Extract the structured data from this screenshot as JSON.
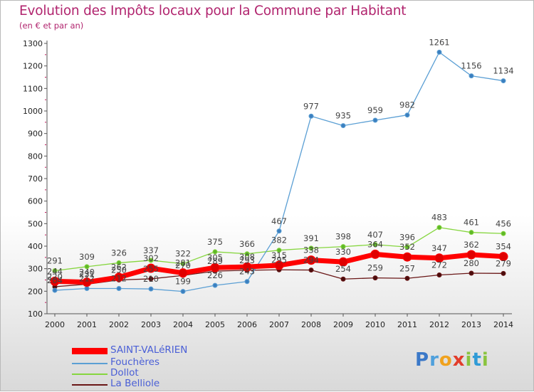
{
  "title": "Evolution des Impôts locaux pour la Commune par Habitant",
  "subtitle": "(en € et par an)",
  "logo": {
    "text": "Proxiti",
    "letters": [
      {
        "ch": "P",
        "color": "#3b78c8"
      },
      {
        "ch": "r",
        "color": "#4fa0dc"
      },
      {
        "ch": "o",
        "color": "#f0a21e"
      },
      {
        "ch": "x",
        "color": "#e23d2b"
      },
      {
        "ch": "i",
        "color": "#8ac43f"
      },
      {
        "ch": "t",
        "color": "#2f9bd6"
      },
      {
        "ch": "i",
        "color": "#8ac43f"
      }
    ]
  },
  "chart_data": {
    "type": "line",
    "title": "Evolution des Impôts locaux pour la Commune par Habitant",
    "subtitle": "(en € et par an)",
    "xlabel": "",
    "ylabel": "",
    "categories": [
      "2000",
      "2001",
      "2002",
      "2003",
      "2004",
      "2005",
      "2006",
      "2007",
      "2008",
      "2009",
      "2010",
      "2011",
      "2012",
      "2013",
      "2014"
    ],
    "ylim": [
      100,
      1300
    ],
    "yticks": [
      100,
      200,
      300,
      400,
      500,
      600,
      700,
      800,
      900,
      1000,
      1100,
      1200,
      1300
    ],
    "grid": false,
    "legend_position": "bottom-left",
    "series": [
      {
        "name": "SAINT-VALéRIEN",
        "color": "#ff0000",
        "width": 7,
        "marker": 6,
        "values": [
          244,
          240,
          262,
          302,
          281,
          305,
          308,
          315,
          338,
          330,
          364,
          352,
          347,
          362,
          354
        ]
      },
      {
        "name": "Fouchères",
        "color": "#5b9fd4",
        "width": 1.3,
        "marker": 3,
        "values": [
          204,
          212,
          212,
          210,
          199,
          226,
          243,
          467,
          977,
          935,
          959,
          982,
          1261,
          1156,
          1134
        ]
      },
      {
        "name": "Dollot",
        "color": "#86d63f",
        "width": 1.3,
        "marker": 3,
        "values": [
          291,
          309,
          326,
          337,
          322,
          375,
          366,
          382,
          391,
          398,
          407,
          396,
          483,
          461,
          456
        ]
      },
      {
        "name": "La Belliole",
        "color": "#6a1717",
        "width": 1.3,
        "marker": 3,
        "values": [
          220,
          231,
          250,
          255,
          270,
          289,
          293,
          295,
          294,
          254,
          259,
          257,
          272,
          280,
          279
        ]
      }
    ],
    "data_labels": [
      {
        "series": "SAINT-VALéRIEN",
        "labels": [
          "244",
          "240",
          "262",
          "302",
          "281",
          "305",
          "308",
          "315",
          "338",
          "330",
          "364",
          "352",
          "347",
          "362",
          "354"
        ]
      },
      {
        "series": "Fouchères",
        "labels": [
          "204",
          "212",
          "212",
          "210",
          "199",
          "226",
          "243",
          "467",
          "977",
          "935",
          "959",
          "982",
          "1261",
          "1156",
          "1134"
        ]
      },
      {
        "series": "Dollot",
        "labels": [
          "291",
          "309",
          "326",
          "337",
          "322",
          "375",
          "366",
          "382",
          "391",
          "398",
          "407",
          "396",
          "483",
          "461",
          "456"
        ]
      },
      {
        "series": "La Belliole",
        "labels": [
          "220",
          "231",
          "250",
          "255",
          "270",
          "289",
          "293",
          "295",
          "294",
          "254",
          "259",
          "257",
          "272",
          "280",
          "279"
        ]
      }
    ]
  }
}
